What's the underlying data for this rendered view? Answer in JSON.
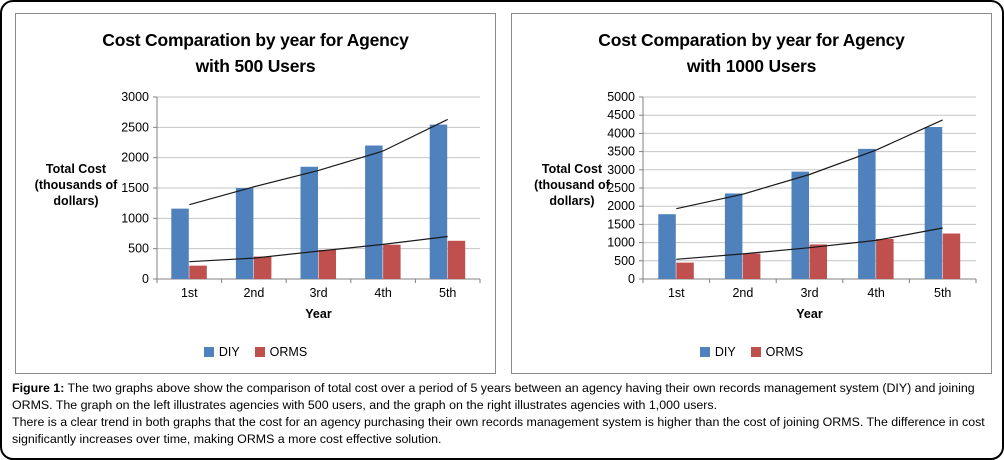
{
  "colors": {
    "diy_bar": "#4F81BD",
    "orms_bar": "#C0504D",
    "gridline": "#C6C6C6",
    "axis": "#808080",
    "trendline": "#1a1a1a",
    "panel_border": "#8a8a8a",
    "outer_border": "#000000"
  },
  "figure": {
    "caption_label": "Figure 1:",
    "caption_p1_rest": " The two graphs above show the comparison of total cost over a period of 5 years between an agency having their own records management system (DIY) and joining ORMS. The graph on the left illustrates agencies with 500 users, and the graph on the right illustrates agencies with 1,000 users.",
    "caption_p2": "There is a clear trend in both graphs that the cost for an agency purchasing their own records management system is higher than the cost of joining ORMS. The difference in cost significantly increases over time, making ORMS a more cost effective solution."
  },
  "chart_data": [
    {
      "type": "bar",
      "title": "Cost Comparation by year for Agency with 500 Users",
      "title_lines": [
        "Cost Comparation by year for Agency",
        "with 500 Users"
      ],
      "categories": [
        "1st",
        "2nd",
        "3rd",
        "4th",
        "5th"
      ],
      "series": [
        {
          "name": "DIY",
          "color": "#4F81BD",
          "values": [
            1160,
            1500,
            1850,
            2200,
            2545
          ]
        },
        {
          "name": "ORMS",
          "color": "#C0504D",
          "values": [
            220,
            370,
            480,
            565,
            630
          ]
        }
      ],
      "trendlines": [
        {
          "series": "DIY",
          "values": [
            1225,
            1520,
            1790,
            2110,
            2630
          ]
        },
        {
          "series": "ORMS",
          "values": [
            285,
            345,
            460,
            570,
            700
          ]
        }
      ],
      "xlabel": "Year",
      "ylabel_lines": [
        "Total Cost",
        "(thousands of",
        "dollars)"
      ],
      "ylim": [
        0,
        3000
      ],
      "ytick_step": 500,
      "grid": true,
      "legend_position": "bottom"
    },
    {
      "type": "bar",
      "title": "Cost Comparation by year for Agency with 1000 Users",
      "title_lines": [
        "Cost Comparation by year for Agency",
        "with 1000 Users"
      ],
      "categories": [
        "1st",
        "2nd",
        "3rd",
        "4th",
        "5th"
      ],
      "series": [
        {
          "name": "DIY",
          "color": "#4F81BD",
          "values": [
            1780,
            2350,
            2950,
            3575,
            4175
          ]
        },
        {
          "name": "ORMS",
          "color": "#C0504D",
          "values": [
            450,
            700,
            950,
            1100,
            1250
          ]
        }
      ],
      "trendlines": [
        {
          "series": "DIY",
          "values": [
            1930,
            2330,
            2870,
            3540,
            4370
          ]
        },
        {
          "series": "ORMS",
          "values": [
            540,
            690,
            860,
            1060,
            1400
          ]
        }
      ],
      "xlabel": "Year",
      "ylabel_lines": [
        "Total Cost",
        "(thousand of",
        "dollars)"
      ],
      "ylim": [
        0,
        5000
      ],
      "ytick_step": 500,
      "grid": true,
      "legend_position": "bottom"
    }
  ]
}
